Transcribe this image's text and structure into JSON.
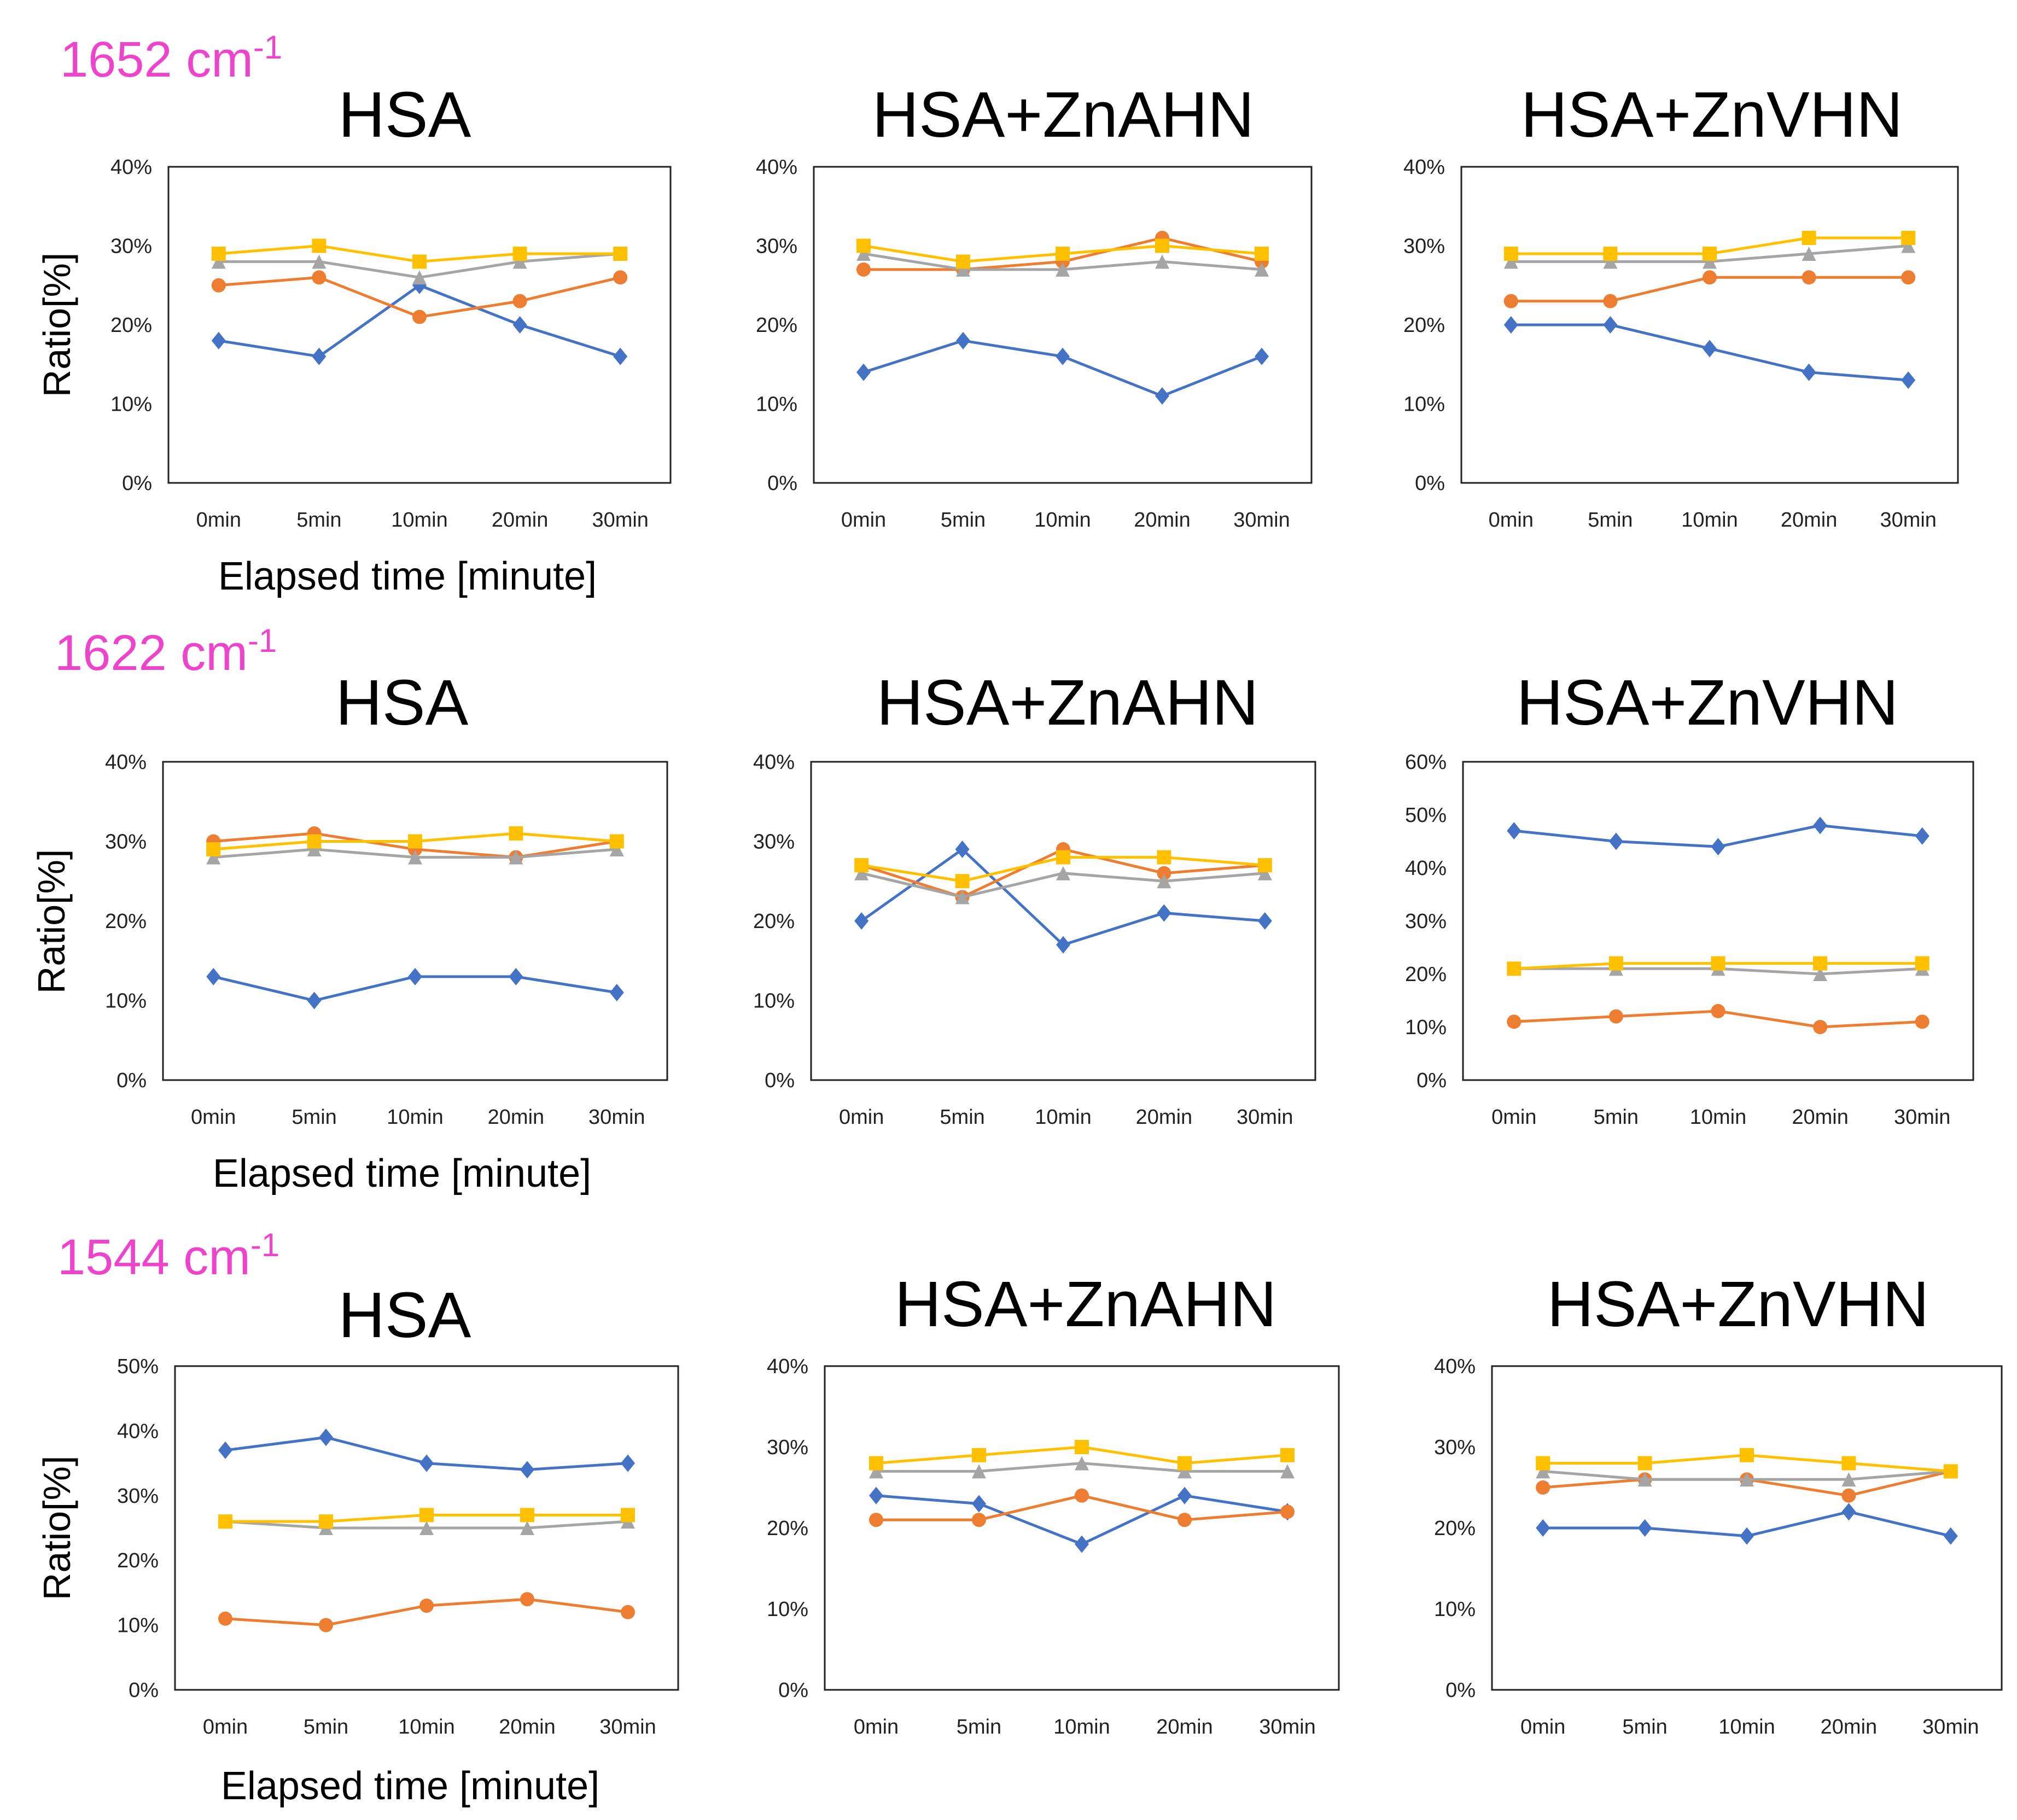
{
  "colors": {
    "series_a": "#4472c4",
    "series_b": "#ed7d31",
    "series_c": "#a5a5a5",
    "series_d": "#ffc000",
    "row_label": "#ee44cc"
  },
  "chart_data": [
    {
      "type": "line",
      "row_label": "1652 cm",
      "row_label_sup": "-1",
      "title": "HSA",
      "ylabel": "Ratio[%]",
      "xlabel": "Elapsed time [minute]",
      "categories": [
        "0min",
        "5min",
        "10min",
        "20min",
        "30min"
      ],
      "yticks": [
        "0%",
        "10%",
        "20%",
        "30%",
        "40%"
      ],
      "ylim": [
        0,
        40
      ],
      "series": [
        {
          "name": "blue",
          "values": [
            18,
            16,
            25,
            20,
            16
          ]
        },
        {
          "name": "orange",
          "values": [
            25,
            26,
            21,
            23,
            26
          ]
        },
        {
          "name": "gray",
          "values": [
            28,
            28,
            26,
            28,
            29
          ]
        },
        {
          "name": "yellow",
          "values": [
            29,
            30,
            28,
            29,
            29
          ]
        }
      ]
    },
    {
      "type": "line",
      "title": "HSA+ZnAHN",
      "categories": [
        "0min",
        "5min",
        "10min",
        "20min",
        "30min"
      ],
      "yticks": [
        "0%",
        "10%",
        "20%",
        "30%",
        "40%"
      ],
      "ylim": [
        0,
        40
      ],
      "series": [
        {
          "name": "blue",
          "values": [
            14,
            18,
            16,
            11,
            16
          ]
        },
        {
          "name": "orange",
          "values": [
            27,
            27,
            28,
            31,
            28
          ]
        },
        {
          "name": "gray",
          "values": [
            29,
            27,
            27,
            28,
            27
          ]
        },
        {
          "name": "yellow",
          "values": [
            30,
            28,
            29,
            30,
            29
          ]
        }
      ]
    },
    {
      "type": "line",
      "title": "HSA+ZnVHN",
      "categories": [
        "0min",
        "5min",
        "10min",
        "20min",
        "30min"
      ],
      "yticks": [
        "0%",
        "10%",
        "20%",
        "30%",
        "40%"
      ],
      "ylim": [
        0,
        40
      ],
      "series": [
        {
          "name": "blue",
          "values": [
            20,
            20,
            17,
            14,
            13
          ]
        },
        {
          "name": "orange",
          "values": [
            23,
            23,
            26,
            26,
            26
          ]
        },
        {
          "name": "gray",
          "values": [
            28,
            28,
            28,
            29,
            30
          ]
        },
        {
          "name": "yellow",
          "values": [
            29,
            29,
            29,
            31,
            31
          ]
        }
      ]
    },
    {
      "type": "line",
      "row_label": "1622 cm",
      "row_label_sup": "-1",
      "title": "HSA",
      "ylabel": "Ratio[%]",
      "xlabel": "Elapsed time [minute]",
      "categories": [
        "0min",
        "5min",
        "10min",
        "20min",
        "30min"
      ],
      "yticks": [
        "0%",
        "10%",
        "20%",
        "30%",
        "40%"
      ],
      "ylim": [
        0,
        40
      ],
      "series": [
        {
          "name": "blue",
          "values": [
            13,
            10,
            13,
            13,
            11
          ]
        },
        {
          "name": "orange",
          "values": [
            30,
            31,
            29,
            28,
            30
          ]
        },
        {
          "name": "gray",
          "values": [
            28,
            29,
            28,
            28,
            29
          ]
        },
        {
          "name": "yellow",
          "values": [
            29,
            30,
            30,
            31,
            30
          ]
        }
      ]
    },
    {
      "type": "line",
      "title": "HSA+ZnAHN",
      "categories": [
        "0min",
        "5min",
        "10min",
        "20min",
        "30min"
      ],
      "yticks": [
        "0%",
        "10%",
        "20%",
        "30%",
        "40%"
      ],
      "ylim": [
        0,
        40
      ],
      "series": [
        {
          "name": "blue",
          "values": [
            20,
            29,
            17,
            21,
            20
          ]
        },
        {
          "name": "orange",
          "values": [
            27,
            23,
            29,
            26,
            27
          ]
        },
        {
          "name": "gray",
          "values": [
            26,
            23,
            26,
            25,
            26
          ]
        },
        {
          "name": "yellow",
          "values": [
            27,
            25,
            28,
            28,
            27
          ]
        }
      ]
    },
    {
      "type": "line",
      "title": "HSA+ZnVHN",
      "categories": [
        "0min",
        "5min",
        "10min",
        "20min",
        "30min"
      ],
      "yticks": [
        "0%",
        "10%",
        "20%",
        "30%",
        "40%",
        "50%",
        "60%"
      ],
      "ylim": [
        0,
        60
      ],
      "series": [
        {
          "name": "blue",
          "values": [
            47,
            45,
            44,
            48,
            46
          ]
        },
        {
          "name": "orange",
          "values": [
            11,
            12,
            13,
            10,
            11
          ]
        },
        {
          "name": "gray",
          "values": [
            21,
            21,
            21,
            20,
            21
          ]
        },
        {
          "name": "yellow",
          "values": [
            21,
            22,
            22,
            22,
            22
          ]
        }
      ]
    },
    {
      "type": "line",
      "row_label": "1544 cm",
      "row_label_sup": "-1",
      "title": "HSA",
      "ylabel": "Ratio[%]",
      "xlabel": "Elapsed time [minute]",
      "categories": [
        "0min",
        "5min",
        "10min",
        "20min",
        "30min"
      ],
      "yticks": [
        "0%",
        "10%",
        "20%",
        "30%",
        "40%",
        "50%"
      ],
      "ylim": [
        0,
        50
      ],
      "series": [
        {
          "name": "blue",
          "values": [
            37,
            39,
            35,
            34,
            35
          ]
        },
        {
          "name": "orange",
          "values": [
            11,
            10,
            13,
            14,
            12
          ]
        },
        {
          "name": "gray",
          "values": [
            26,
            25,
            25,
            25,
            26
          ]
        },
        {
          "name": "yellow",
          "values": [
            26,
            26,
            27,
            27,
            27
          ]
        }
      ]
    },
    {
      "type": "line",
      "title": "HSA+ZnAHN",
      "categories": [
        "0min",
        "5min",
        "10min",
        "20min",
        "30min"
      ],
      "yticks": [
        "0%",
        "10%",
        "20%",
        "30%",
        "40%"
      ],
      "ylim": [
        0,
        40
      ],
      "series": [
        {
          "name": "blue",
          "values": [
            24,
            23,
            18,
            24,
            22
          ]
        },
        {
          "name": "orange",
          "values": [
            21,
            21,
            24,
            21,
            22
          ]
        },
        {
          "name": "gray",
          "values": [
            27,
            27,
            28,
            27,
            27
          ]
        },
        {
          "name": "yellow",
          "values": [
            28,
            29,
            30,
            28,
            29
          ]
        }
      ]
    },
    {
      "type": "line",
      "title": "HSA+ZnVHN",
      "categories": [
        "0min",
        "5min",
        "10min",
        "20min",
        "30min"
      ],
      "yticks": [
        "0%",
        "10%",
        "20%",
        "30%",
        "40%"
      ],
      "ylim": [
        0,
        40
      ],
      "series": [
        {
          "name": "blue",
          "values": [
            20,
            20,
            19,
            22,
            19
          ]
        },
        {
          "name": "orange",
          "values": [
            25,
            26,
            26,
            24,
            27
          ]
        },
        {
          "name": "gray",
          "values": [
            27,
            26,
            26,
            26,
            27
          ]
        },
        {
          "name": "yellow",
          "values": [
            28,
            28,
            29,
            28,
            27
          ]
        }
      ]
    }
  ]
}
